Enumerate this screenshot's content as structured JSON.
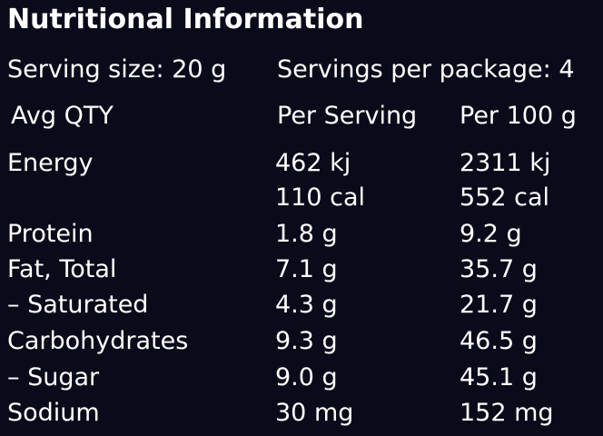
{
  "title": "Nutritional Information",
  "serving": {
    "size_label": "Serving size: 20 g",
    "per_package_label": "Servings per package: 4"
  },
  "header": {
    "col1": "Avg QTY",
    "col2": "Per Serving",
    "col3": "Per 100 g"
  },
  "rows": [
    {
      "name": "Energy",
      "per_serving": "462 kj",
      "per_100g": "2311 kj"
    },
    {
      "name": "",
      "per_serving": "110 cal",
      "per_100g": "552 cal"
    },
    {
      "name": "Protein",
      "per_serving": "1.8 g",
      "per_100g": "9.2 g"
    },
    {
      "name": "Fat, Total",
      "per_serving": "7.1 g",
      "per_100g": "35.7 g"
    },
    {
      "name": "– Saturated",
      "per_serving": "4.3 g",
      "per_100g": "21.7 g"
    },
    {
      "name": "Carbohydrates",
      "per_serving": "9.3 g",
      "per_100g": "46.5 g"
    },
    {
      "name": "– Sugar",
      "per_serving": "9.0 g",
      "per_100g": "45.1 g"
    },
    {
      "name": "Sodium",
      "per_serving": "30 mg",
      "per_100g": "152 mg"
    }
  ],
  "colors": {
    "background": "#0a0a1a",
    "text": "#ffffff"
  }
}
